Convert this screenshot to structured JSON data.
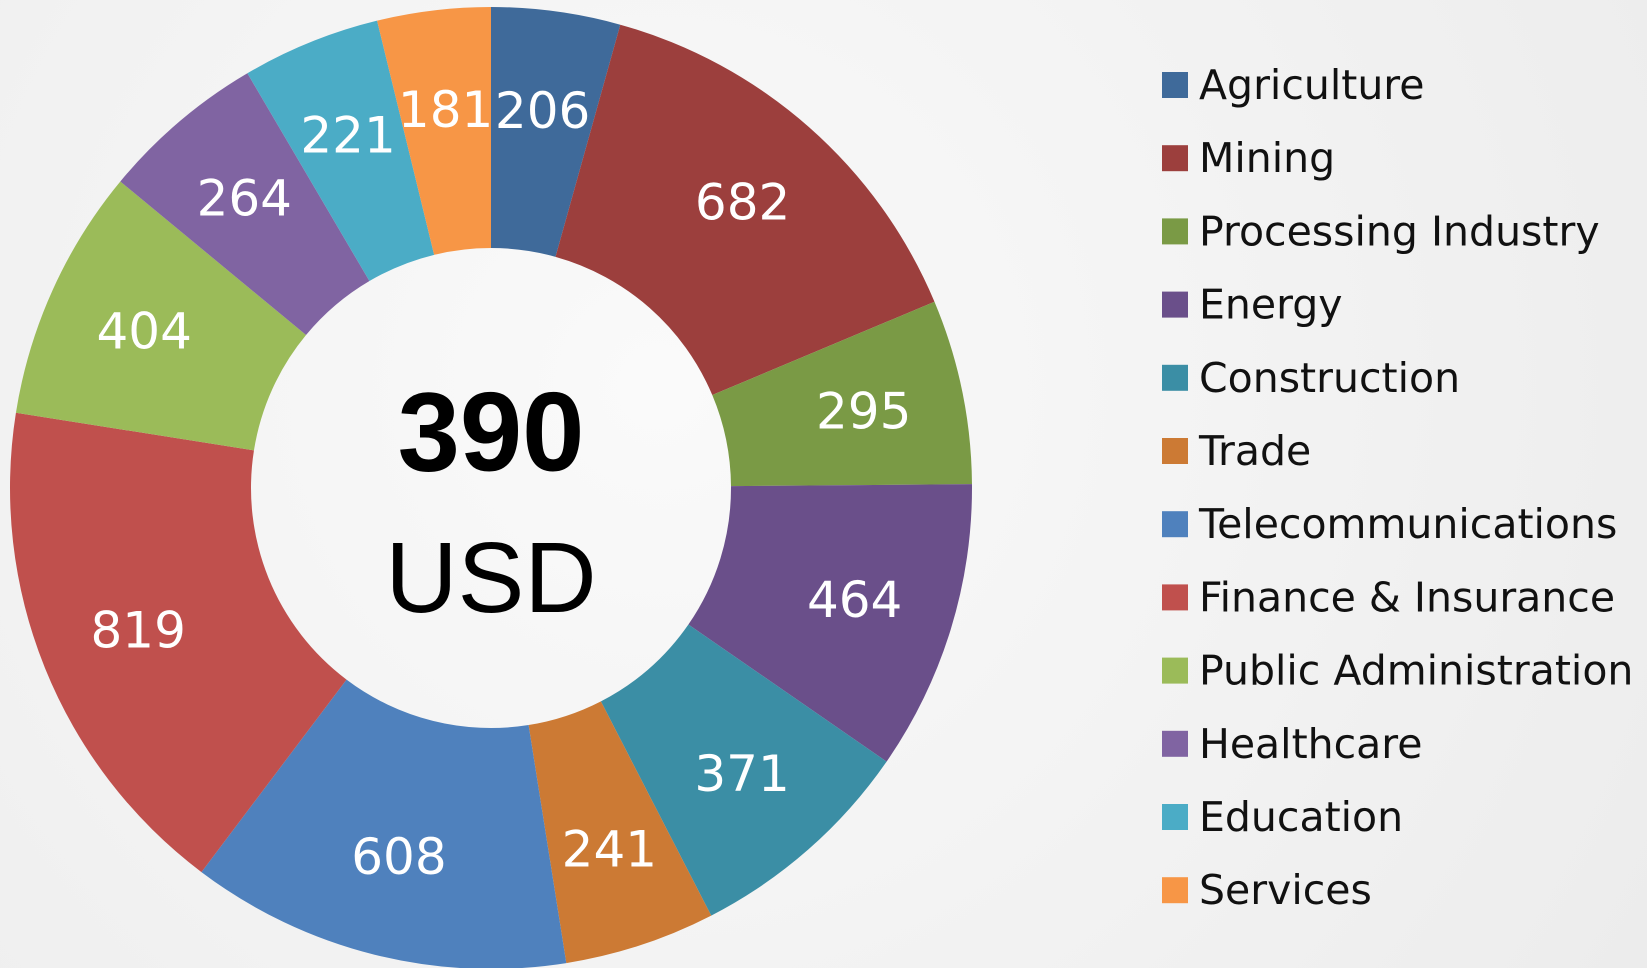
{
  "chart_data": {
    "type": "donut",
    "center_value": 390,
    "center_unit": "USD",
    "categories": [
      "Agriculture",
      "Mining",
      "Processing Industry",
      "Energy",
      "Construction",
      "Trade",
      "Telecommunications",
      "Finance & Insurance",
      "Public Administration",
      "Healthcare",
      "Education",
      "Services"
    ],
    "values": [
      206,
      682,
      295,
      464,
      371,
      241,
      608,
      819,
      404,
      264,
      221,
      181
    ],
    "colors": [
      "#3f6a9a",
      "#9c3f3d",
      "#7a9a45",
      "#6a4f8a",
      "#3b8ea5",
      "#cc7a34",
      "#4f81bd",
      "#c0504d",
      "#9bbb59",
      "#8064a2",
      "#4bacc6",
      "#f79646"
    ],
    "legend": "right"
  }
}
